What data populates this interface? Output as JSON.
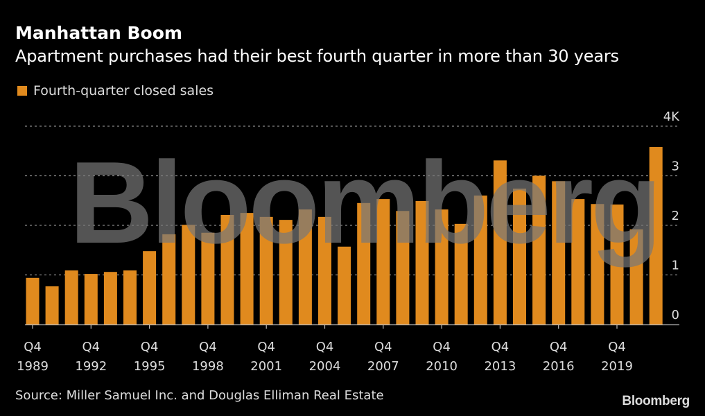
{
  "header": {
    "title": "Manhattan Boom",
    "subtitle": "Apartment purchases had their best fourth quarter in more than 30 years"
  },
  "legend": {
    "label": "Fourth-quarter closed sales",
    "color": "#E08A1E"
  },
  "footer": {
    "source": "Source: Miller Samuel Inc. and Douglas Elliman Real Estate",
    "brand": "Bloomberg"
  },
  "watermark": "Bloomberg",
  "chart_data": {
    "type": "bar",
    "title": "Manhattan Boom",
    "subtitle": "Apartment purchases had their best fourth quarter in more than 30 years",
    "xlabel": "",
    "ylabel": "",
    "ylim": [
      0,
      4000
    ],
    "y_ticks": [
      0,
      1000,
      2000,
      3000,
      4000
    ],
    "y_tick_labels": [
      "0",
      "1",
      "2",
      "3",
      "4K"
    ],
    "y_axis_position": "right",
    "grid": true,
    "legend_position": "top-left",
    "categories": [
      "Q4 1989",
      "Q4 1990",
      "Q4 1991",
      "Q4 1992",
      "Q4 1993",
      "Q4 1994",
      "Q4 1995",
      "Q4 1996",
      "Q4 1997",
      "Q4 1998",
      "Q4 1999",
      "Q4 2000",
      "Q4 2001",
      "Q4 2002",
      "Q4 2003",
      "Q4 2004",
      "Q4 2005",
      "Q4 2006",
      "Q4 2007",
      "Q4 2008",
      "Q4 2009",
      "Q4 2010",
      "Q4 2011",
      "Q4 2012",
      "Q4 2013",
      "Q4 2014",
      "Q4 2015",
      "Q4 2016",
      "Q4 2017",
      "Q4 2018",
      "Q4 2019",
      "Q4 2020",
      "Q4 2021"
    ],
    "x_tick_labels": [
      {
        "index": 0,
        "line1": "Q4",
        "line2": "1989"
      },
      {
        "index": 3,
        "line1": "Q4",
        "line2": "1992"
      },
      {
        "index": 6,
        "line1": "Q4",
        "line2": "1995"
      },
      {
        "index": 9,
        "line1": "Q4",
        "line2": "1998"
      },
      {
        "index": 12,
        "line1": "Q4",
        "line2": "2001"
      },
      {
        "index": 15,
        "line1": "Q4",
        "line2": "2004"
      },
      {
        "index": 18,
        "line1": "Q4",
        "line2": "2007"
      },
      {
        "index": 21,
        "line1": "Q4",
        "line2": "2010"
      },
      {
        "index": 24,
        "line1": "Q4",
        "line2": "2013"
      },
      {
        "index": 27,
        "line1": "Q4",
        "line2": "2016"
      },
      {
        "index": 30,
        "line1": "Q4",
        "line2": "2019"
      }
    ],
    "series": [
      {
        "name": "Fourth-quarter closed sales",
        "color": "#E08A1E",
        "values": [
          940,
          770,
          1090,
          1020,
          1060,
          1090,
          1480,
          1820,
          2010,
          1850,
          2210,
          2250,
          2170,
          2110,
          2320,
          2170,
          1570,
          2450,
          2530,
          2290,
          2490,
          2320,
          2030,
          2600,
          3310,
          2740,
          3000,
          2890,
          2530,
          2430,
          2420,
          1920,
          3580
        ]
      }
    ]
  }
}
